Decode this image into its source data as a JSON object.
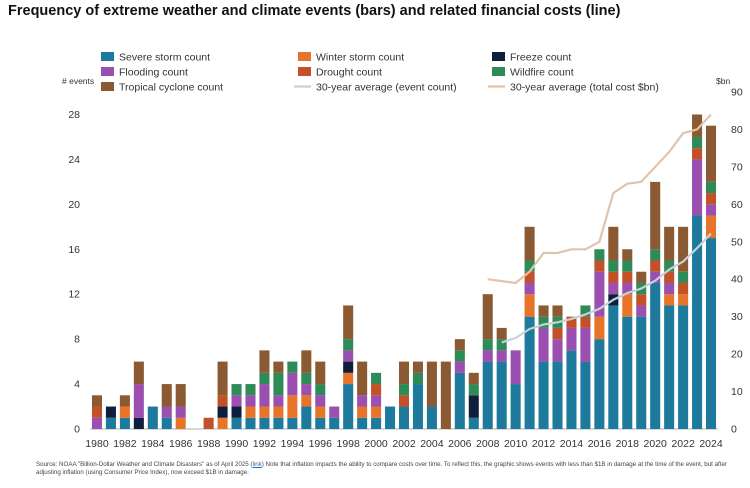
{
  "title": "Frequency of extreme weather and climate events (bars) and related financial costs (line)",
  "source": {
    "before": "Source: NOAA \"Billion-Dollar Weather and Climate Disasters\" as of April 2025 (",
    "link": "link",
    "after": ") Note that inflation impacts the ability to compare costs over time. To reflect this, the graphic shows events with less than $1B in damage at the time of the event, but after adjusting inflation (using Consumer Price Index), now exceed $1B in damage."
  },
  "chart_data": {
    "type": "bar",
    "stacked": true,
    "title": "Frequency of extreme weather and climate events (bars) and related financial costs (line)",
    "ylabel": "# events",
    "y2label": "$bn",
    "ylim": [
      0,
      30
    ],
    "y2lim": [
      0,
      90
    ],
    "yticks": [
      0,
      4,
      8,
      12,
      16,
      20,
      24,
      28
    ],
    "y2ticks": [
      0,
      10,
      20,
      30,
      40,
      50,
      60,
      70,
      80,
      90
    ],
    "categories": [
      "1980",
      "1981",
      "1982",
      "1983",
      "1984",
      "1985",
      "1986",
      "1987",
      "1988",
      "1989",
      "1990",
      "1991",
      "1992",
      "1993",
      "1994",
      "1995",
      "1996",
      "1997",
      "1998",
      "1999",
      "2000",
      "2001",
      "2002",
      "2003",
      "2004",
      "2005",
      "2006",
      "2007",
      "2008",
      "2009",
      "2010",
      "2011",
      "2012",
      "2013",
      "2014",
      "2015",
      "2016",
      "2017",
      "2018",
      "2019",
      "2020",
      "2021",
      "2022",
      "2023",
      "2024"
    ],
    "xticklabels": [
      "1980",
      "1982",
      "1984",
      "1986",
      "1988",
      "1990",
      "1992",
      "1994",
      "1996",
      "1998",
      "2000",
      "2002",
      "2004",
      "2006",
      "2008",
      "2010",
      "2012",
      "2014",
      "2016",
      "2018",
      "2020",
      "2022",
      "2024"
    ],
    "series": [
      {
        "name": "Severe storm count",
        "color": "#1e7a9c",
        "values": [
          0,
          1,
          1,
          0,
          2,
          1,
          0,
          0,
          0,
          0,
          1,
          1,
          1,
          1,
          1,
          2,
          1,
          1,
          4,
          1,
          1,
          2,
          2,
          4,
          2,
          0,
          5,
          1,
          6,
          6,
          4,
          10,
          6,
          6,
          7,
          6,
          8,
          11,
          10,
          10,
          13,
          11,
          11,
          19,
          17
        ]
      },
      {
        "name": "Winter storm count",
        "color": "#e8742a",
        "values": [
          0,
          0,
          1,
          0,
          0,
          0,
          1,
          0,
          0,
          1,
          0,
          1,
          1,
          1,
          2,
          1,
          1,
          0,
          1,
          1,
          1,
          0,
          0,
          0,
          0,
          0,
          0,
          0,
          0,
          0,
          0,
          2,
          0,
          0,
          0,
          0,
          2,
          0,
          2,
          0,
          0,
          1,
          1,
          0,
          2
        ]
      },
      {
        "name": "Freeze count",
        "color": "#0e1f3d",
        "values": [
          0,
          1,
          0,
          1,
          0,
          0,
          0,
          0,
          0,
          1,
          1,
          0,
          0,
          0,
          0,
          0,
          0,
          0,
          1,
          0,
          0,
          0,
          0,
          0,
          0,
          0,
          0,
          2,
          0,
          0,
          0,
          0,
          0,
          0,
          0,
          0,
          0,
          1,
          0,
          0,
          0,
          0,
          0,
          0,
          0
        ]
      },
      {
        "name": "Flooding count",
        "color": "#9b4fb0",
        "values": [
          1,
          0,
          0,
          3,
          0,
          1,
          1,
          0,
          0,
          0,
          1,
          1,
          2,
          1,
          2,
          1,
          1,
          1,
          1,
          1,
          1,
          0,
          0,
          0,
          0,
          0,
          1,
          0,
          1,
          1,
          3,
          1,
          3,
          2,
          2,
          3,
          4,
          1,
          1,
          1,
          1,
          1,
          0,
          5,
          1
        ]
      },
      {
        "name": "Drought count",
        "color": "#c2512a",
        "values": [
          1,
          0,
          0,
          0,
          0,
          0,
          0,
          0,
          1,
          1,
          0,
          0,
          0,
          0,
          0,
          0,
          0,
          0,
          0,
          0,
          1,
          0,
          1,
          0,
          0,
          0,
          0,
          0,
          0,
          0,
          0,
          1,
          0,
          1,
          1,
          1,
          1,
          1,
          1,
          1,
          1,
          1,
          1,
          1,
          1
        ]
      },
      {
        "name": "Wildfire count",
        "color": "#2e8b57",
        "values": [
          0,
          0,
          0,
          0,
          0,
          0,
          0,
          0,
          0,
          0,
          1,
          1,
          1,
          2,
          1,
          1,
          1,
          0,
          1,
          0,
          1,
          0,
          1,
          1,
          0,
          0,
          1,
          1,
          1,
          1,
          0,
          1,
          1,
          1,
          0,
          1,
          1,
          1,
          1,
          1,
          1,
          1,
          1,
          1,
          1
        ]
      },
      {
        "name": "Tropical cyclone count",
        "color": "#8c5a32",
        "values": [
          1,
          0,
          1,
          2,
          0,
          2,
          2,
          0,
          0,
          3,
          0,
          0,
          2,
          1,
          0,
          2,
          2,
          0,
          3,
          3,
          0,
          0,
          2,
          1,
          4,
          6,
          1,
          1,
          4,
          1,
          0,
          3,
          1,
          1,
          0,
          0,
          0,
          3,
          1,
          1,
          6,
          3,
          4,
          2,
          5
        ]
      }
    ],
    "lines": [
      {
        "name": "30-year average (event count)",
        "axis": "left",
        "color": "#c8d0d8",
        "x": [
          "2009",
          "2010",
          "2011",
          "2012",
          "2013",
          "2014",
          "2015",
          "2016",
          "2017",
          "2018",
          "2019",
          "2020",
          "2021",
          "2022",
          "2023",
          "2024"
        ],
        "values": [
          7.7,
          8.1,
          8.9,
          9.3,
          9.5,
          9.8,
          10.2,
          10.7,
          11.5,
          12.1,
          12.5,
          13.2,
          14.2,
          14.9,
          16.1,
          17.4
        ]
      },
      {
        "name": "30-year average (total cost $bn)",
        "axis": "right",
        "color": "#e2c3ac",
        "x": [
          "2008",
          "2009",
          "2010",
          "2011",
          "2012",
          "2013",
          "2014",
          "2015",
          "2016",
          "2017",
          "2018",
          "2019",
          "2020",
          "2021",
          "2022",
          "2023",
          "2024"
        ],
        "values": [
          40,
          39.5,
          39,
          42,
          47,
          47,
          48,
          48,
          50,
          63,
          65.5,
          66,
          70,
          74,
          79,
          80,
          84
        ]
      }
    ]
  }
}
